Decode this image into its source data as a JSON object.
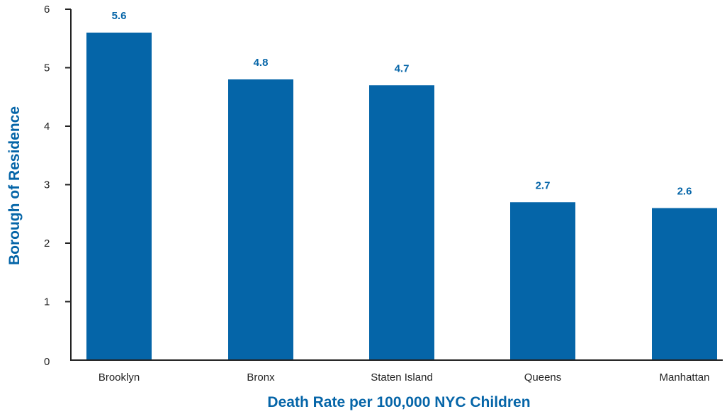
{
  "chart_data": {
    "type": "bar",
    "categories": [
      "Brooklyn",
      "Bronx",
      "Staten Island",
      "Queens",
      "Manhattan"
    ],
    "values": [
      5.6,
      4.8,
      4.7,
      2.7,
      2.6
    ],
    "data_labels": [
      "5.6",
      "4.8",
      "4.7",
      "2.7",
      "2.6"
    ],
    "title": "",
    "xlabel": "Death Rate per 100,000 NYC Children",
    "ylabel": "Borough of Residence",
    "ylim": [
      0,
      6
    ],
    "yticks": [
      "0",
      "1",
      "2",
      "3",
      "4",
      "5",
      "6"
    ],
    "grid": false,
    "legend": "none"
  },
  "colors": {
    "bar": "#0565a8",
    "label": "#0565a8",
    "axis": "#222222"
  }
}
